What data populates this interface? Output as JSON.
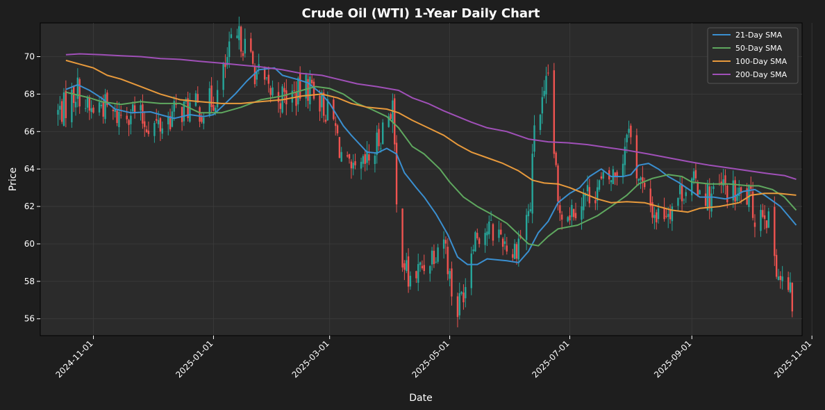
{
  "chart_data": {
    "type": "candlestick",
    "title": "Crude Oil (WTI) 1-Year Daily Chart",
    "xlabel": "Date",
    "ylabel": "Price",
    "x_range": [
      "2024-10-05",
      "2025-10-27"
    ],
    "ylim": [
      55.1,
      71.8
    ],
    "x_ticks": [
      "2024-11-01",
      "2025-01-01",
      "2025-03-01",
      "2025-05-01",
      "2025-07-01",
      "2025-09-01",
      "2025-11-01"
    ],
    "y_ticks": [
      56,
      58,
      60,
      62,
      64,
      66,
      68,
      70
    ],
    "grid": true,
    "legend_position": "top-right",
    "colors": {
      "background": "#1e1e1e",
      "plot_background": "#2b2b2b",
      "up": "#26a69a",
      "down": "#ef5350",
      "grid": "#3c3c3c",
      "text": "#ffffff"
    },
    "price_anchors": [
      [
        "2024-10-14",
        67.0
      ],
      [
        "2024-10-18",
        67.4
      ],
      [
        "2024-10-24",
        68.3
      ],
      [
        "2024-10-30",
        67.0
      ],
      [
        "2024-11-05",
        67.5
      ],
      [
        "2024-11-12",
        66.8
      ],
      [
        "2024-11-20",
        67.2
      ],
      [
        "2024-11-27",
        66.5
      ],
      [
        "2024-12-05",
        66.3
      ],
      [
        "2024-12-12",
        67.0
      ],
      [
        "2024-12-20",
        67.3
      ],
      [
        "2024-12-27",
        67.2
      ],
      [
        "2025-01-03",
        68.0
      ],
      [
        "2025-01-10",
        70.5
      ],
      [
        "2025-01-15",
        71.0
      ],
      [
        "2025-01-21",
        69.5
      ],
      [
        "2025-01-28",
        68.2
      ],
      [
        "2025-02-05",
        67.8
      ],
      [
        "2025-02-12",
        68.0
      ],
      [
        "2025-02-20",
        68.5
      ],
      [
        "2025-02-25",
        67.5
      ],
      [
        "2025-03-03",
        66.5
      ],
      [
        "2025-03-07",
        64.8
      ],
      [
        "2025-03-12",
        63.5
      ],
      [
        "2025-03-18",
        64.0
      ],
      [
        "2025-03-24",
        65.0
      ],
      [
        "2025-03-28",
        66.2
      ],
      [
        "2025-04-02",
        67.5
      ],
      [
        "2025-04-04",
        61.8
      ],
      [
        "2025-04-07",
        59.5
      ],
      [
        "2025-04-10",
        58.0
      ],
      [
        "2025-04-15",
        58.5
      ],
      [
        "2025-04-22",
        59.5
      ],
      [
        "2025-04-28",
        60.5
      ],
      [
        "2025-05-02",
        57.5
      ],
      [
        "2025-05-05",
        56.5
      ],
      [
        "2025-05-09",
        58.0
      ],
      [
        "2025-05-13",
        60.5
      ],
      [
        "2025-05-20",
        60.8
      ],
      [
        "2025-05-27",
        60.5
      ],
      [
        "2025-06-02",
        59.5
      ],
      [
        "2025-06-06",
        60.5
      ],
      [
        "2025-06-11",
        62.0
      ],
      [
        "2025-06-13",
        66.5
      ],
      [
        "2025-06-18",
        67.5
      ],
      [
        "2025-06-20",
        69.0
      ],
      [
        "2025-06-23",
        65.0
      ],
      [
        "2025-06-25",
        62.0
      ],
      [
        "2025-07-01",
        61.8
      ],
      [
        "2025-07-08",
        62.5
      ],
      [
        "2025-07-15",
        63.0
      ],
      [
        "2025-07-22",
        63.5
      ],
      [
        "2025-07-28",
        64.5
      ],
      [
        "2025-07-30",
        66.5
      ],
      [
        "2025-08-04",
        64.0
      ],
      [
        "2025-08-08",
        62.5
      ],
      [
        "2025-08-14",
        61.5
      ],
      [
        "2025-08-21",
        62.0
      ],
      [
        "2025-08-28",
        63.0
      ],
      [
        "2025-09-04",
        63.2
      ],
      [
        "2025-09-10",
        62.5
      ],
      [
        "2025-09-17",
        63.0
      ],
      [
        "2025-09-24",
        62.5
      ],
      [
        "2025-09-30",
        62.5
      ],
      [
        "2025-10-03",
        61.5
      ],
      [
        "2025-10-08",
        62.0
      ],
      [
        "2025-10-13",
        59.5
      ],
      [
        "2025-10-16",
        58.0
      ],
      [
        "2025-10-20",
        57.5
      ],
      [
        "2025-10-22",
        56.8
      ]
    ],
    "series": [
      {
        "name": "21-Day SMA",
        "color": "#3a8fd0",
        "points": [
          [
            "2024-10-18",
            68.25
          ],
          [
            "2024-10-24",
            68.5
          ],
          [
            "2024-10-30",
            68.2
          ],
          [
            "2024-11-05",
            67.8
          ],
          [
            "2024-11-12",
            67.2
          ],
          [
            "2024-11-20",
            67.0
          ],
          [
            "2024-11-30",
            67.05
          ],
          [
            "2024-12-05",
            66.9
          ],
          [
            "2024-12-12",
            66.7
          ],
          [
            "2024-12-20",
            66.9
          ],
          [
            "2024-12-27",
            66.8
          ],
          [
            "2025-01-01",
            66.9
          ],
          [
            "2025-01-05",
            67.3
          ],
          [
            "2025-01-12",
            68.0
          ],
          [
            "2025-01-18",
            68.7
          ],
          [
            "2025-01-24",
            69.3
          ],
          [
            "2025-02-01",
            69.4
          ],
          [
            "2025-02-05",
            69.0
          ],
          [
            "2025-02-12",
            68.8
          ],
          [
            "2025-02-18",
            68.6
          ],
          [
            "2025-02-25",
            68.0
          ],
          [
            "2025-03-01",
            67.5
          ],
          [
            "2025-03-08",
            66.3
          ],
          [
            "2025-03-12",
            65.8
          ],
          [
            "2025-03-20",
            64.9
          ],
          [
            "2025-03-25",
            64.85
          ],
          [
            "2025-03-30",
            65.1
          ],
          [
            "2025-04-04",
            64.8
          ],
          [
            "2025-04-08",
            63.8
          ],
          [
            "2025-04-14",
            63.0
          ],
          [
            "2025-04-18",
            62.5
          ],
          [
            "2025-04-24",
            61.6
          ],
          [
            "2025-04-30",
            60.5
          ],
          [
            "2025-05-05",
            59.3
          ],
          [
            "2025-05-10",
            58.9
          ],
          [
            "2025-05-15",
            58.9
          ],
          [
            "2025-05-20",
            59.2
          ],
          [
            "2025-05-30",
            59.1
          ],
          [
            "2025-06-05",
            59.0
          ],
          [
            "2025-06-10",
            59.6
          ],
          [
            "2025-06-15",
            60.6
          ],
          [
            "2025-06-20",
            61.2
          ],
          [
            "2025-06-25",
            62.2
          ],
          [
            "2025-07-01",
            62.7
          ],
          [
            "2025-07-06",
            63.0
          ],
          [
            "2025-07-11",
            63.6
          ],
          [
            "2025-07-17",
            64.0
          ],
          [
            "2025-07-22",
            63.6
          ],
          [
            "2025-07-28",
            63.6
          ],
          [
            "2025-08-01",
            63.7
          ],
          [
            "2025-08-05",
            64.2
          ],
          [
            "2025-08-10",
            64.3
          ],
          [
            "2025-08-15",
            64.0
          ],
          [
            "2025-08-20",
            63.6
          ],
          [
            "2025-08-25",
            63.3
          ],
          [
            "2025-09-01",
            62.8
          ],
          [
            "2025-09-05",
            62.5
          ],
          [
            "2025-09-12",
            62.5
          ],
          [
            "2025-09-18",
            62.4
          ],
          [
            "2025-09-22",
            62.5
          ],
          [
            "2025-09-27",
            62.8
          ],
          [
            "2025-10-03",
            62.9
          ],
          [
            "2025-10-08",
            62.6
          ],
          [
            "2025-10-12",
            62.3
          ],
          [
            "2025-10-16",
            62.0
          ],
          [
            "2025-10-20",
            61.5
          ],
          [
            "2025-10-24",
            61.0
          ]
        ]
      },
      {
        "name": "50-Day SMA",
        "color": "#5fa85f",
        "points": [
          [
            "2024-10-18",
            68.1
          ],
          [
            "2024-10-30",
            67.8
          ],
          [
            "2024-11-05",
            67.6
          ],
          [
            "2024-11-15",
            67.45
          ],
          [
            "2024-11-25",
            67.6
          ],
          [
            "2024-12-05",
            67.5
          ],
          [
            "2024-12-15",
            67.5
          ],
          [
            "2024-12-25",
            67.0
          ],
          [
            "2025-01-05",
            67.0
          ],
          [
            "2025-01-15",
            67.3
          ],
          [
            "2025-01-25",
            67.7
          ],
          [
            "2025-02-05",
            67.9
          ],
          [
            "2025-02-15",
            68.2
          ],
          [
            "2025-02-22",
            68.4
          ],
          [
            "2025-03-01",
            68.3
          ],
          [
            "2025-03-08",
            68.0
          ],
          [
            "2025-03-15",
            67.5
          ],
          [
            "2025-03-22",
            67.2
          ],
          [
            "2025-03-30",
            66.8
          ],
          [
            "2025-04-05",
            66.2
          ],
          [
            "2025-04-12",
            65.2
          ],
          [
            "2025-04-18",
            64.8
          ],
          [
            "2025-04-26",
            64.0
          ],
          [
            "2025-05-01",
            63.3
          ],
          [
            "2025-05-08",
            62.5
          ],
          [
            "2025-05-15",
            62.0
          ],
          [
            "2025-05-22",
            61.6
          ],
          [
            "2025-05-30",
            61.1
          ],
          [
            "2025-06-05",
            60.5
          ],
          [
            "2025-06-10",
            60.0
          ],
          [
            "2025-06-15",
            59.9
          ],
          [
            "2025-06-20",
            60.4
          ],
          [
            "2025-06-25",
            60.8
          ],
          [
            "2025-07-05",
            61.0
          ],
          [
            "2025-07-15",
            61.5
          ],
          [
            "2025-07-22",
            62.0
          ],
          [
            "2025-07-30",
            62.6
          ],
          [
            "2025-08-05",
            63.2
          ],
          [
            "2025-08-12",
            63.5
          ],
          [
            "2025-08-20",
            63.7
          ],
          [
            "2025-08-27",
            63.6
          ],
          [
            "2025-09-01",
            63.3
          ],
          [
            "2025-09-10",
            63.2
          ],
          [
            "2025-09-20",
            63.2
          ],
          [
            "2025-09-30",
            63.1
          ],
          [
            "2025-10-05",
            63.1
          ],
          [
            "2025-10-12",
            62.9
          ],
          [
            "2025-10-18",
            62.5
          ],
          [
            "2025-10-24",
            61.8
          ]
        ]
      },
      {
        "name": "100-Day SMA",
        "color": "#e89a3c",
        "points": [
          [
            "2024-10-18",
            69.8
          ],
          [
            "2024-10-25",
            69.6
          ],
          [
            "2024-11-01",
            69.4
          ],
          [
            "2024-11-08",
            69.0
          ],
          [
            "2024-11-15",
            68.8
          ],
          [
            "2024-11-25",
            68.4
          ],
          [
            "2024-12-05",
            68.0
          ],
          [
            "2024-12-15",
            67.7
          ],
          [
            "2024-12-25",
            67.6
          ],
          [
            "2025-01-05",
            67.5
          ],
          [
            "2025-01-15",
            67.5
          ],
          [
            "2025-01-25",
            67.6
          ],
          [
            "2025-02-05",
            67.7
          ],
          [
            "2025-02-15",
            67.9
          ],
          [
            "2025-02-25",
            68.0
          ],
          [
            "2025-03-05",
            67.8
          ],
          [
            "2025-03-12",
            67.5
          ],
          [
            "2025-03-20",
            67.3
          ],
          [
            "2025-03-30",
            67.2
          ],
          [
            "2025-04-05",
            67.0
          ],
          [
            "2025-04-12",
            66.6
          ],
          [
            "2025-04-20",
            66.2
          ],
          [
            "2025-04-28",
            65.8
          ],
          [
            "2025-05-05",
            65.3
          ],
          [
            "2025-05-12",
            64.9
          ],
          [
            "2025-05-20",
            64.6
          ],
          [
            "2025-05-28",
            64.3
          ],
          [
            "2025-06-05",
            63.9
          ],
          [
            "2025-06-12",
            63.4
          ],
          [
            "2025-06-18",
            63.25
          ],
          [
            "2025-06-25",
            63.2
          ],
          [
            "2025-07-01",
            63.0
          ],
          [
            "2025-07-08",
            62.7
          ],
          [
            "2025-07-15",
            62.4
          ],
          [
            "2025-07-22",
            62.2
          ],
          [
            "2025-07-30",
            62.25
          ],
          [
            "2025-08-08",
            62.2
          ],
          [
            "2025-08-15",
            62.0
          ],
          [
            "2025-08-22",
            61.8
          ],
          [
            "2025-08-30",
            61.7
          ],
          [
            "2025-09-05",
            61.9
          ],
          [
            "2025-09-15",
            62.0
          ],
          [
            "2025-09-25",
            62.2
          ],
          [
            "2025-10-01",
            62.6
          ],
          [
            "2025-10-08",
            62.7
          ],
          [
            "2025-10-15",
            62.7
          ],
          [
            "2025-10-24",
            62.6
          ]
        ]
      },
      {
        "name": "200-Day SMA",
        "color": "#a050b8",
        "points": [
          [
            "2024-10-18",
            70.1
          ],
          [
            "2024-10-25",
            70.15
          ],
          [
            "2024-11-05",
            70.1
          ],
          [
            "2024-11-15",
            70.05
          ],
          [
            "2024-11-25",
            70.0
          ],
          [
            "2024-12-05",
            69.9
          ],
          [
            "2024-12-15",
            69.85
          ],
          [
            "2024-12-25",
            69.75
          ],
          [
            "2025-01-05",
            69.65
          ],
          [
            "2025-01-15",
            69.55
          ],
          [
            "2025-01-25",
            69.45
          ],
          [
            "2025-02-05",
            69.3
          ],
          [
            "2025-02-15",
            69.1
          ],
          [
            "2025-02-25",
            69.0
          ],
          [
            "2025-03-05",
            68.8
          ],
          [
            "2025-03-15",
            68.55
          ],
          [
            "2025-03-25",
            68.4
          ],
          [
            "2025-04-05",
            68.2
          ],
          [
            "2025-04-12",
            67.8
          ],
          [
            "2025-04-20",
            67.5
          ],
          [
            "2025-04-28",
            67.1
          ],
          [
            "2025-05-05",
            66.8
          ],
          [
            "2025-05-12",
            66.5
          ],
          [
            "2025-05-20",
            66.2
          ],
          [
            "2025-05-30",
            66.0
          ],
          [
            "2025-06-10",
            65.6
          ],
          [
            "2025-06-20",
            65.45
          ],
          [
            "2025-06-30",
            65.4
          ],
          [
            "2025-07-10",
            65.3
          ],
          [
            "2025-07-20",
            65.15
          ],
          [
            "2025-07-30",
            65.0
          ],
          [
            "2025-08-10",
            64.8
          ],
          [
            "2025-08-20",
            64.6
          ],
          [
            "2025-08-30",
            64.4
          ],
          [
            "2025-09-10",
            64.2
          ],
          [
            "2025-09-20",
            64.05
          ],
          [
            "2025-09-30",
            63.9
          ],
          [
            "2025-10-10",
            63.75
          ],
          [
            "2025-10-18",
            63.65
          ],
          [
            "2025-10-24",
            63.45
          ]
        ]
      }
    ]
  }
}
